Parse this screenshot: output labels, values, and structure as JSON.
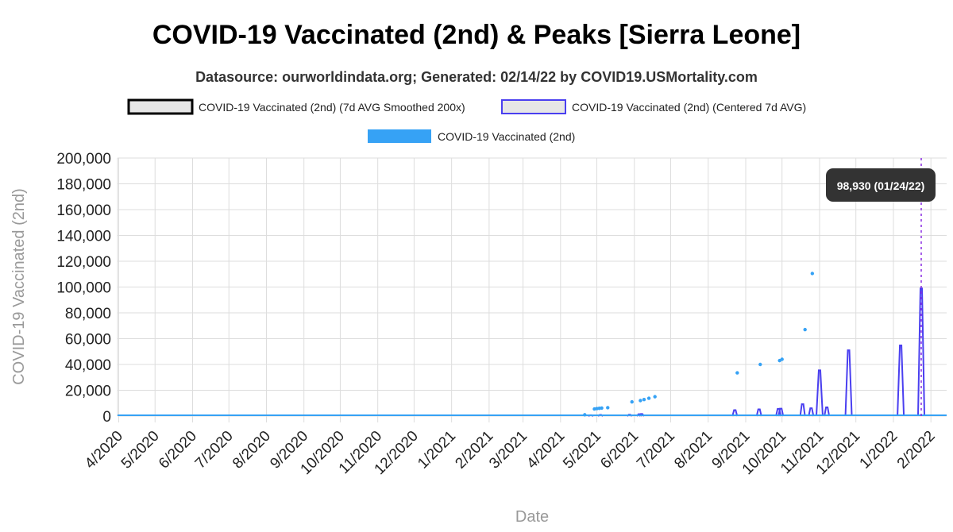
{
  "title": "COVID-19 Vaccinated (2nd) & Peaks [Sierra Leone]",
  "subtitle": "Datasource: ourworldindata.org; Generated: 02/14/22 by COVID19.USMortality.com",
  "colors": {
    "smoothed_fill": "#e6e6e6",
    "smoothed_border": "#000000",
    "centered_fill": "#e6e6e6",
    "centered_border": "#4a3ff0",
    "daily": "#36a2f5",
    "peak_marker": "#8a2be2",
    "grid": "#dddddd",
    "tooltip_bg": "#333333"
  },
  "chart_data": {
    "type": "line",
    "xlabel": "Date",
    "ylabel": "COVID-19 Vaccinated (2nd)",
    "ylim": [
      0,
      200000
    ],
    "yticks": [
      0,
      20000,
      40000,
      60000,
      80000,
      100000,
      120000,
      140000,
      160000,
      180000,
      200000
    ],
    "ytick_labels": [
      "0",
      "20,000",
      "40,000",
      "60,000",
      "80,000",
      "100,000",
      "120,000",
      "140,000",
      "160,000",
      "180,000",
      "200,000"
    ],
    "xlim": [
      "2020-03-31",
      "2022-02-14"
    ],
    "xticks": [
      "2020-04-01",
      "2020-05-01",
      "2020-06-01",
      "2020-07-01",
      "2020-08-01",
      "2020-09-01",
      "2020-10-01",
      "2020-11-01",
      "2020-12-01",
      "2021-01-01",
      "2021-02-01",
      "2021-03-01",
      "2021-04-01",
      "2021-05-01",
      "2021-06-01",
      "2021-07-01",
      "2021-08-01",
      "2021-09-01",
      "2021-10-01",
      "2021-11-01",
      "2021-12-01",
      "2022-01-01",
      "2022-02-01"
    ],
    "xtick_labels": [
      "4/2020",
      "5/2020",
      "6/2020",
      "7/2020",
      "8/2020",
      "9/2020",
      "10/2020",
      "11/2020",
      "12/2020",
      "1/2021",
      "2/2021",
      "3/2021",
      "4/2021",
      "5/2021",
      "6/2021",
      "7/2021",
      "8/2021",
      "9/2021",
      "10/2021",
      "11/2021",
      "12/2021",
      "1/2022",
      "2/2022"
    ],
    "legend_position": "top",
    "grid": true,
    "series": [
      {
        "name": "COVID-19 Vaccinated (2nd) (7d AVG Smoothed 200x)",
        "style": "line",
        "points": [
          [
            "2020-03-31",
            0
          ],
          [
            "2022-02-14",
            0
          ]
        ]
      },
      {
        "name": "COVID-19 Vaccinated (2nd) (Centered 7d AVG)",
        "style": "spikes",
        "points": [
          [
            "2021-04-26",
            700
          ],
          [
            "2021-05-04",
            900
          ],
          [
            "2021-05-28",
            1100
          ],
          [
            "2021-06-05",
            1500
          ],
          [
            "2021-06-07",
            1600
          ],
          [
            "2021-08-23",
            4600
          ],
          [
            "2021-09-12",
            5200
          ],
          [
            "2021-09-28",
            5600
          ],
          [
            "2021-09-30",
            5800
          ],
          [
            "2021-10-18",
            9200
          ],
          [
            "2021-10-25",
            6100
          ],
          [
            "2021-11-01",
            35500
          ],
          [
            "2021-11-07",
            6800
          ],
          [
            "2021-11-25",
            51000
          ],
          [
            "2022-01-07",
            54800
          ],
          [
            "2022-01-24",
            98930
          ]
        ]
      },
      {
        "name": "COVID-19 Vaccinated (2nd)",
        "style": "points",
        "points": [
          [
            "2021-04-21",
            1000
          ],
          [
            "2021-04-29",
            5500
          ],
          [
            "2021-05-01",
            5800
          ],
          [
            "2021-05-03",
            6000
          ],
          [
            "2021-05-05",
            6200
          ],
          [
            "2021-05-10",
            6500
          ],
          [
            "2021-05-30",
            11000
          ],
          [
            "2021-06-06",
            12000
          ],
          [
            "2021-06-09",
            12800
          ],
          [
            "2021-06-13",
            13800
          ],
          [
            "2021-06-18",
            15000
          ],
          [
            "2021-08-25",
            33500
          ],
          [
            "2021-09-13",
            40000
          ],
          [
            "2021-09-29",
            43000
          ],
          [
            "2021-10-01",
            44000
          ],
          [
            "2021-10-20",
            67000
          ],
          [
            "2021-10-26",
            110500
          ]
        ]
      }
    ],
    "annotations": [
      {
        "type": "vline",
        "x": "2022-01-24",
        "style": "dotted"
      },
      {
        "type": "tooltip",
        "x": "2022-01-24",
        "text": "98,930 (01/24/22)"
      }
    ]
  }
}
